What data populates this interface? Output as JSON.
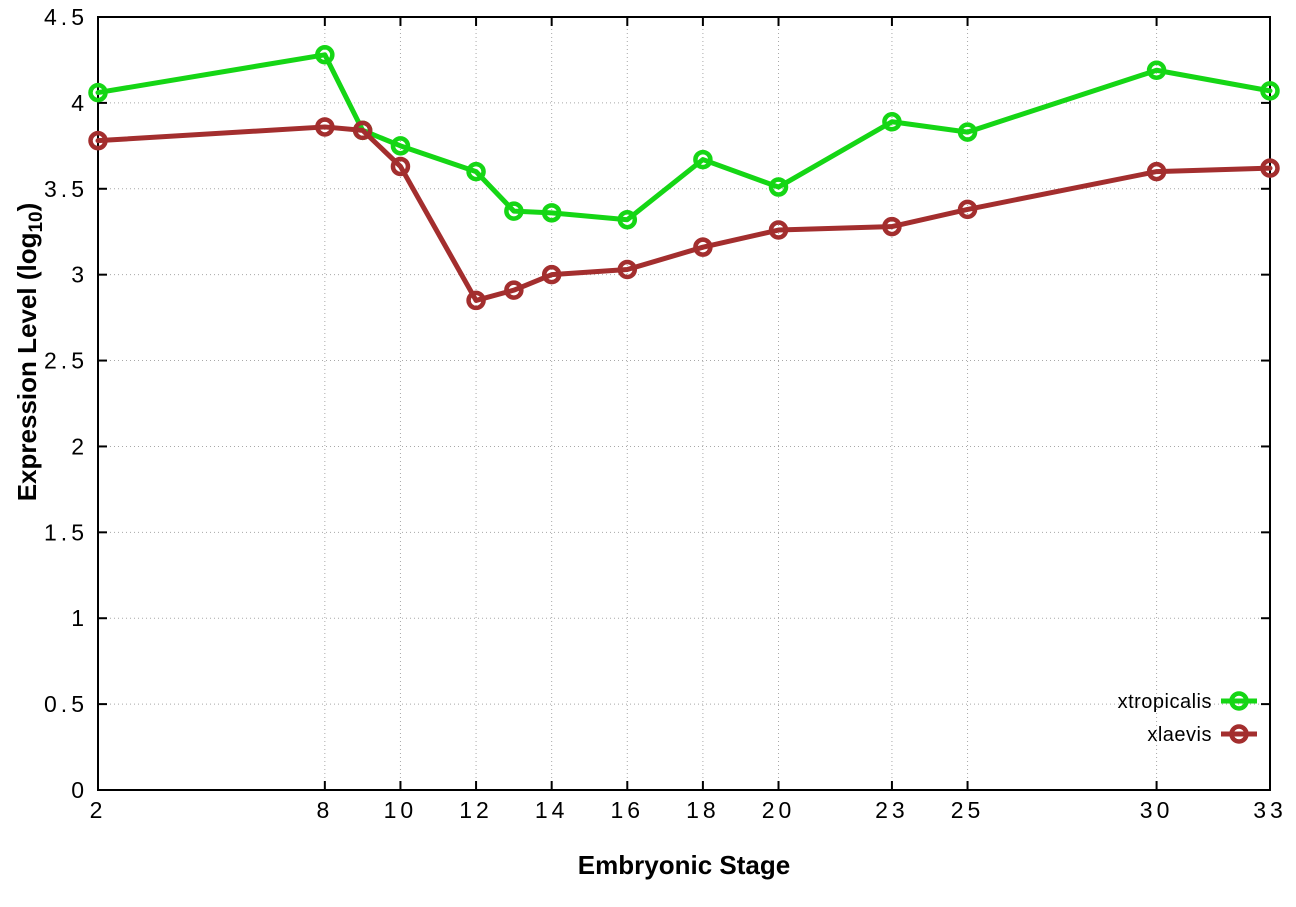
{
  "chart_data": {
    "type": "line",
    "title": "",
    "xlabel": "Embryonic Stage",
    "ylabel": "Expression Level (log10)",
    "ylabel_parts": {
      "pre": "Expression Level (log",
      "sub": "10",
      "post": ")"
    },
    "xlim": [
      2,
      33
    ],
    "ylim": [
      0,
      4.5
    ],
    "xticks": [
      2,
      8,
      10,
      12,
      14,
      16,
      18,
      20,
      23,
      25,
      30,
      33
    ],
    "yticks": [
      0,
      0.5,
      1,
      1.5,
      2,
      2.5,
      3,
      3.5,
      4,
      4.5
    ],
    "ytick_labels": [
      "0",
      "0.5",
      "1",
      "1.5",
      "2",
      "2.5",
      "3",
      "3.5",
      "4",
      "4.5"
    ],
    "grid": true,
    "legend_position": "inside-bottom-right",
    "x": [
      2,
      8,
      9,
      10,
      12,
      13,
      14,
      16,
      18,
      20,
      23,
      25,
      30,
      33
    ],
    "series": [
      {
        "name": "xtropicalis",
        "color": "#15d615",
        "values": [
          4.06,
          4.28,
          3.84,
          3.75,
          3.6,
          3.37,
          3.36,
          3.32,
          3.67,
          3.51,
          3.89,
          3.83,
          4.19,
          4.07
        ]
      },
      {
        "name": "xlaevis",
        "color": "#a32e2e",
        "values": [
          3.78,
          3.86,
          3.84,
          3.63,
          2.85,
          2.91,
          3.0,
          3.03,
          3.16,
          3.26,
          3.28,
          3.38,
          3.6,
          3.62
        ]
      }
    ],
    "style": {
      "background": "#ffffff",
      "axis_color": "#000000",
      "grid_color": "#a8a8a8"
    }
  }
}
